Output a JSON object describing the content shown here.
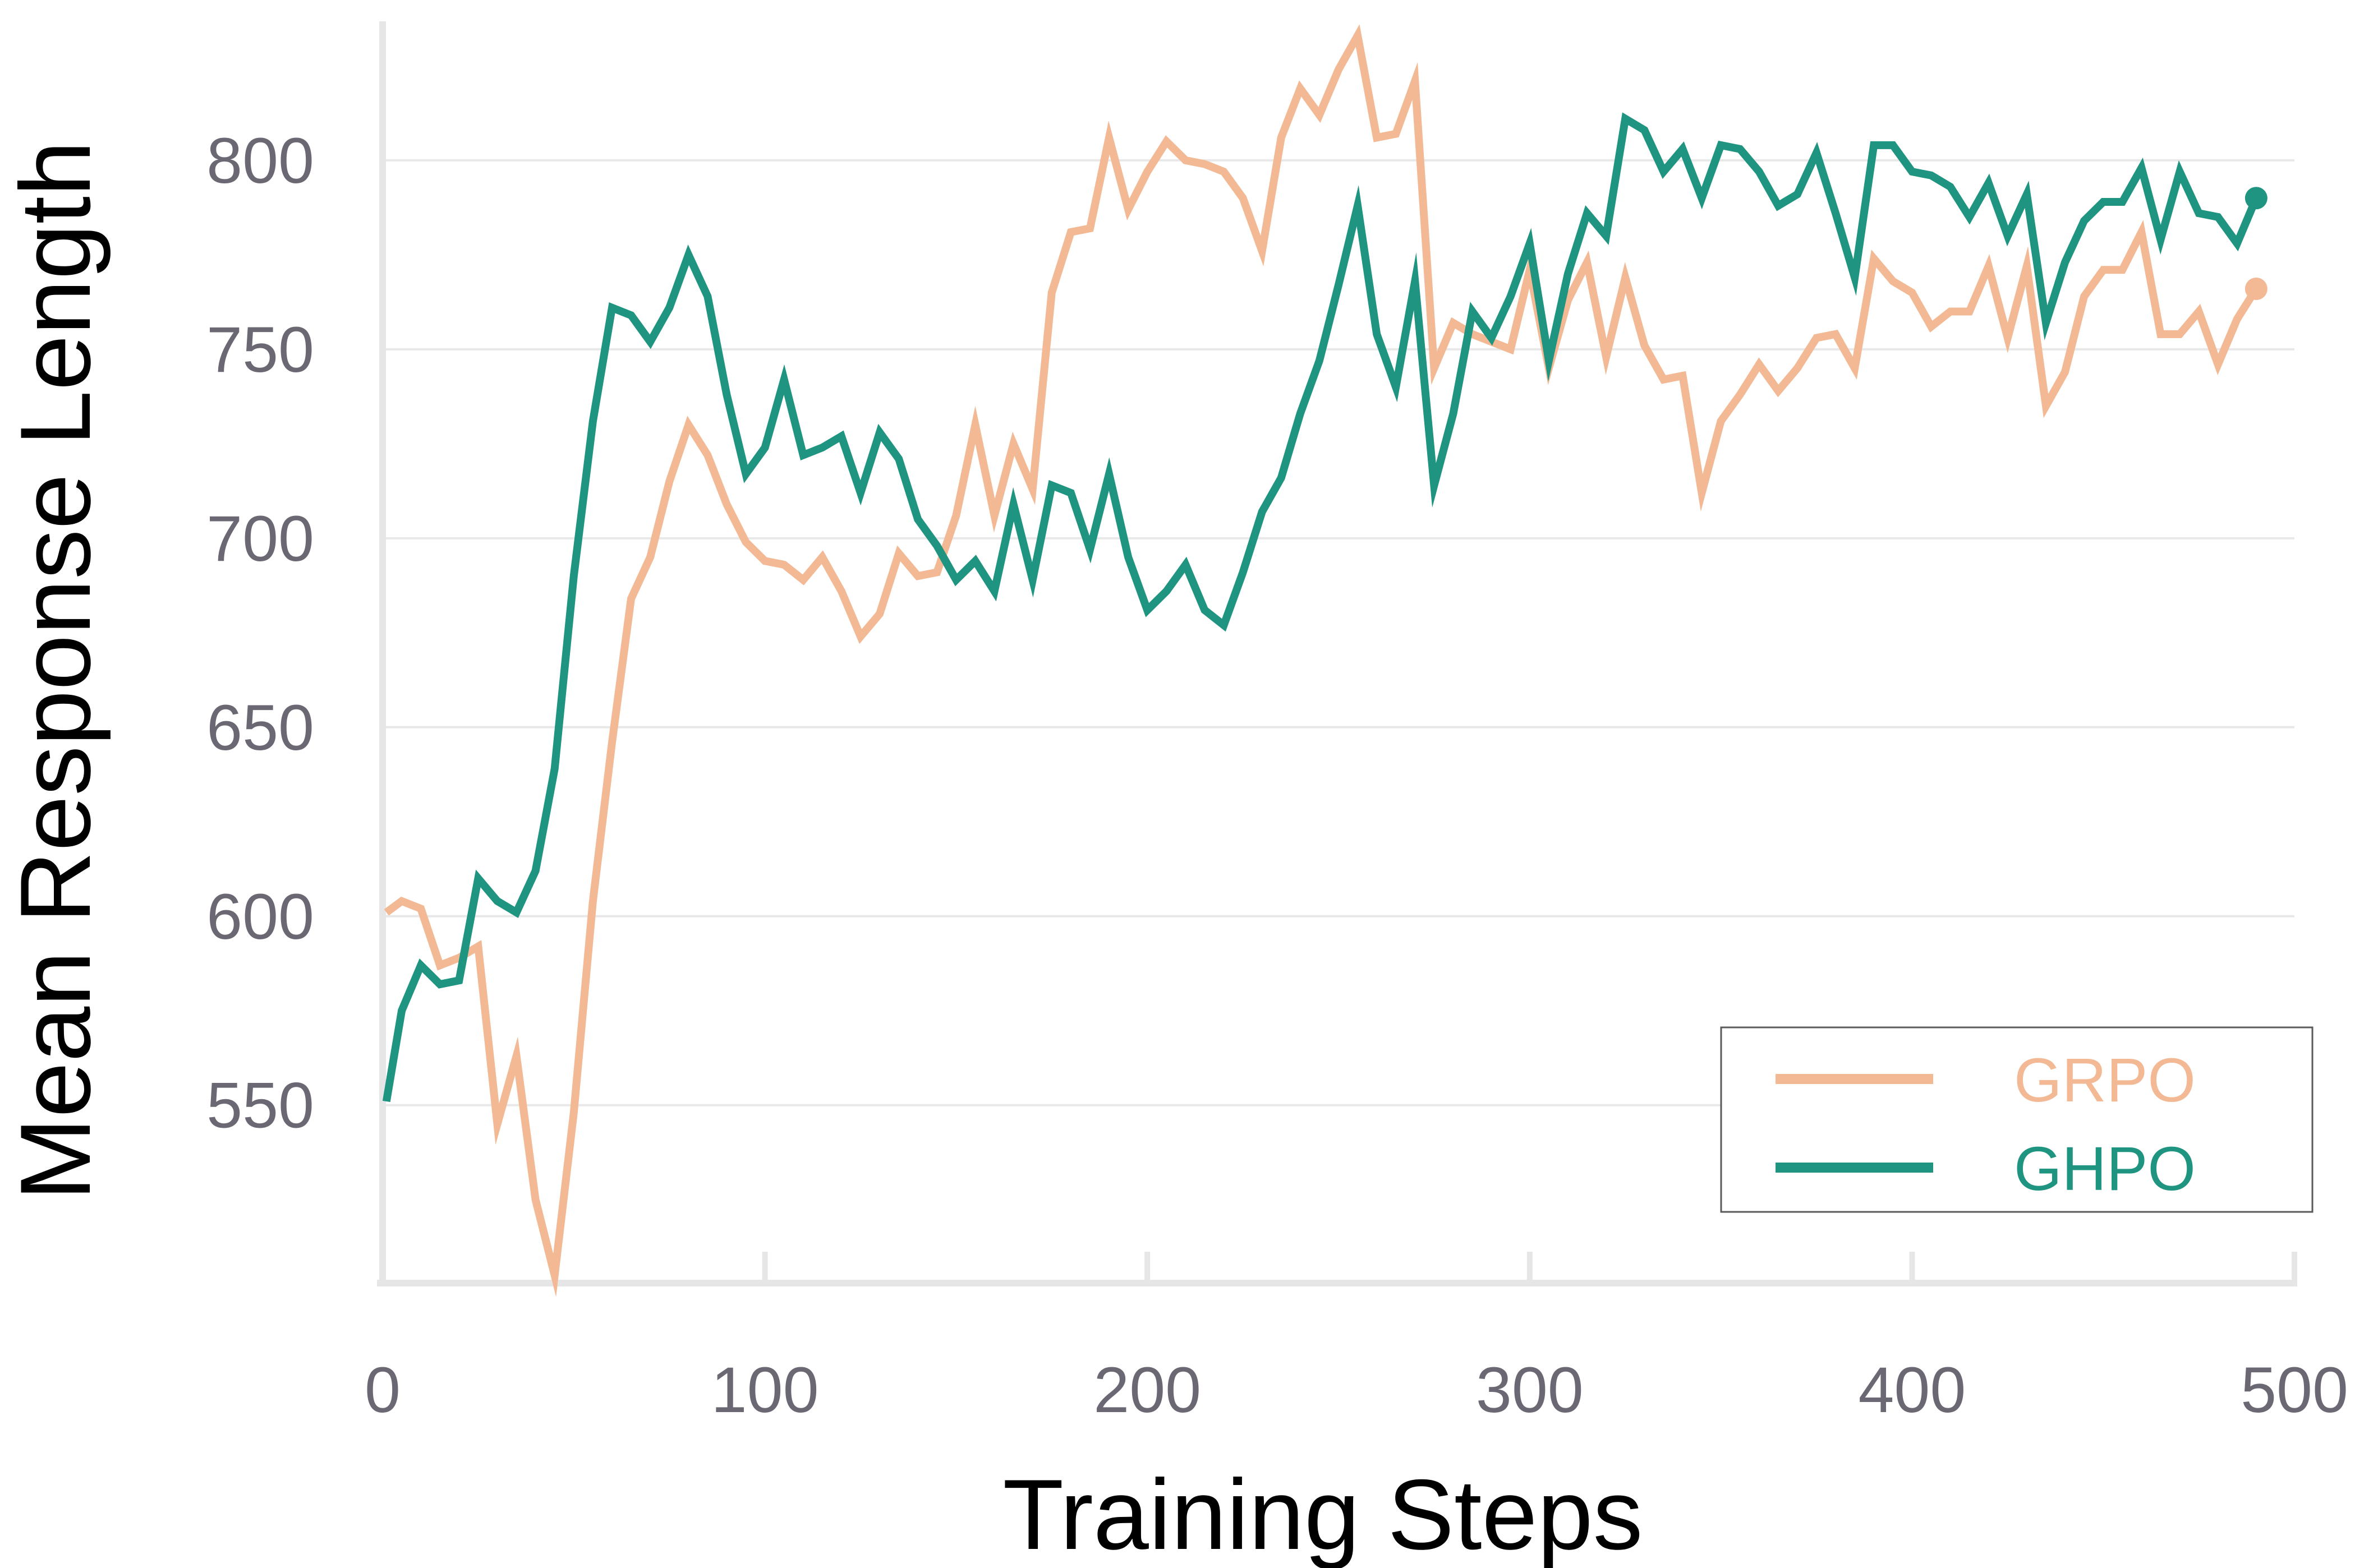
{
  "chart_data": {
    "type": "line",
    "xlabel": "Training Steps",
    "ylabel": "Mean Response Length",
    "xlim": [
      0,
      500
    ],
    "ylim": [
      505,
      835
    ],
    "xticks": [
      0,
      100,
      200,
      300,
      400,
      500
    ],
    "yticks": [
      550,
      600,
      650,
      700,
      750,
      800
    ],
    "xtick_labels": [
      "0",
      "100",
      "200",
      "300",
      "400",
      "500"
    ],
    "ytick_labels": [
      "550",
      "600",
      "650",
      "700",
      "750",
      "800"
    ],
    "grid": "horizontal",
    "legend": "bottom-right",
    "series": [
      {
        "name": "GRPO",
        "color": "#f2b994",
        "x": [
          1,
          5,
          10,
          15,
          20,
          25,
          30,
          35,
          40,
          45,
          50,
          55,
          60,
          65,
          70,
          75,
          80,
          85,
          90,
          95,
          100,
          105,
          110,
          115,
          120,
          125,
          130,
          135,
          140,
          145,
          150,
          155,
          160,
          165,
          170,
          175,
          180,
          185,
          190,
          195,
          200,
          205,
          210,
          215,
          220,
          225,
          230,
          235,
          240,
          245,
          250,
          255,
          260,
          265,
          270,
          275,
          280,
          285,
          290,
          295,
          300,
          305,
          310,
          315,
          320,
          325,
          330,
          335,
          340,
          345,
          350,
          355,
          360,
          365,
          370,
          375,
          380,
          385,
          390,
          395,
          400,
          405,
          410,
          415,
          420,
          425,
          430,
          435,
          440,
          445,
          450,
          455,
          460,
          465,
          470,
          475,
          480,
          485,
          490
        ],
        "values": [
          601,
          604,
          602,
          587,
          589,
          592,
          545,
          563,
          525,
          505,
          548,
          604,
          646,
          684,
          695,
          715,
          730,
          722,
          709,
          699,
          694,
          693,
          689,
          695,
          686,
          674,
          680,
          696,
          690,
          691,
          706,
          730,
          706,
          725,
          713,
          765,
          781,
          782,
          806,
          787,
          797,
          805,
          800,
          799,
          797,
          790,
          776,
          806,
          819,
          812,
          824,
          833,
          806,
          807,
          821,
          745,
          757,
          754,
          752,
          750,
          771,
          745,
          763,
          773,
          748,
          769,
          751,
          742,
          743,
          712,
          731,
          738,
          746,
          739,
          745,
          753,
          754,
          745,
          774,
          768,
          765,
          756,
          760,
          760,
          772,
          753,
          772,
          735,
          744,
          764,
          771,
          771,
          781,
          754,
          754,
          760,
          746,
          758,
          766
        ]
      },
      {
        "name": "GHPO",
        "color": "#1f9480",
        "x": [
          1,
          5,
          10,
          15,
          20,
          25,
          30,
          35,
          40,
          45,
          50,
          55,
          60,
          65,
          70,
          75,
          80,
          85,
          90,
          95,
          100,
          105,
          110,
          115,
          120,
          125,
          130,
          135,
          140,
          145,
          150,
          155,
          160,
          165,
          170,
          175,
          180,
          185,
          190,
          195,
          200,
          205,
          210,
          215,
          220,
          225,
          230,
          235,
          240,
          245,
          250,
          255,
          260,
          265,
          270,
          275,
          280,
          285,
          290,
          295,
          300,
          305,
          310,
          315,
          320,
          325,
          330,
          335,
          340,
          345,
          350,
          355,
          360,
          365,
          370,
          375,
          380,
          385,
          390,
          395,
          400,
          405,
          410,
          415,
          420,
          425,
          430,
          435,
          440,
          445,
          450,
          455,
          460,
          465,
          470,
          475,
          480,
          485,
          490
        ],
        "values": [
          551,
          575,
          587,
          582,
          583,
          610,
          604,
          601,
          612,
          639,
          690,
          731,
          761,
          759,
          752,
          761,
          775,
          764,
          738,
          717,
          724,
          742,
          722,
          724,
          727,
          712,
          728,
          721,
          705,
          698,
          689,
          694,
          686,
          709,
          689,
          714,
          712,
          697,
          717,
          695,
          681,
          686,
          693,
          681,
          677,
          691,
          707,
          716,
          733,
          747,
          767,
          788,
          754,
          740,
          768,
          714,
          733,
          760,
          753,
          764,
          778,
          747,
          770,
          786,
          780,
          811,
          808,
          797,
          803,
          790,
          804,
          803,
          797,
          788,
          791,
          802,
          786,
          769,
          804,
          804,
          797,
          796,
          793,
          785,
          794,
          780,
          791,
          757,
          773,
          784,
          789,
          789,
          798,
          779,
          797,
          786,
          785,
          778,
          790
        ]
      }
    ]
  }
}
